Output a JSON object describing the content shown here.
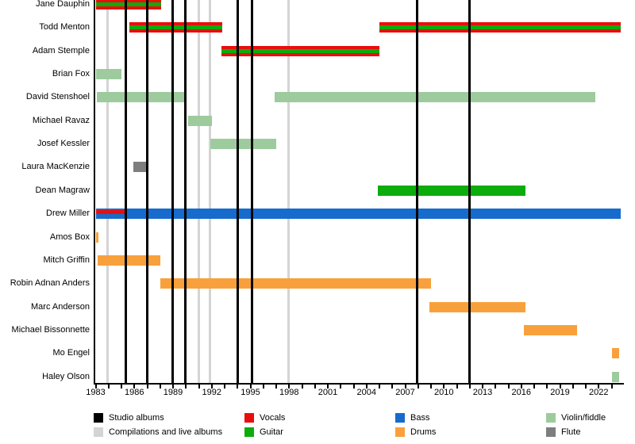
{
  "colors": {
    "vocals": "#e90e0e",
    "guitar": "#0cac0c",
    "bass": "#176bcd",
    "drums": "#f8a13c",
    "violin": "#9dcb9d",
    "flute": "#7e7e7e",
    "studio_line": "#000000",
    "compilation_line": "#d4d4d4"
  },
  "chart_data": {
    "type": "timeline",
    "description": "Band members timeline with instrument roles and album release markers",
    "x_axis": {
      "start_year": 1983,
      "end_year": 2023.75,
      "major_tick_labels": [
        "1983",
        "1986",
        "1989",
        "1992",
        "1995",
        "1998",
        "2001",
        "2004",
        "2007",
        "2010",
        "2013",
        "2016",
        "2019",
        "2022"
      ],
      "major_tick_years": [
        1983,
        1986,
        1989,
        1992,
        1995,
        1998,
        2001,
        2004,
        2007,
        2010,
        2013,
        2016,
        2019,
        2022
      ],
      "minor_tick_every": 1
    },
    "members": [
      {
        "name": "Jane Dauphin",
        "bars": [
          {
            "start": 1983.0,
            "end": 1988.1,
            "roles": [
              "vocals",
              "guitar"
            ]
          }
        ]
      },
      {
        "name": "Todd Menton",
        "bars": [
          {
            "start": 1985.6,
            "end": 1992.8,
            "roles": [
              "vocals",
              "guitar"
            ]
          },
          {
            "start": 2005.0,
            "end": 2023.7,
            "roles": [
              "vocals",
              "guitar"
            ]
          }
        ]
      },
      {
        "name": "Adam Stemple",
        "bars": [
          {
            "start": 1992.75,
            "end": 2005.0,
            "roles": [
              "vocals",
              "guitar"
            ]
          }
        ]
      },
      {
        "name": "Brian Fox",
        "bars": [
          {
            "start": 1983.0,
            "end": 1985.0,
            "roles": [
              "violin"
            ]
          }
        ]
      },
      {
        "name": "David Stenshoel",
        "bars": [
          {
            "start": 1983.1,
            "end": 1990.0,
            "roles": [
              "violin"
            ]
          },
          {
            "start": 1996.9,
            "end": 2021.75,
            "roles": [
              "violin"
            ]
          }
        ]
      },
      {
        "name": "Michael Ravaz",
        "bars": [
          {
            "start": 1990.15,
            "end": 1992.0,
            "roles": [
              "violin"
            ]
          }
        ]
      },
      {
        "name": "Josef Kessler",
        "bars": [
          {
            "start": 1991.9,
            "end": 1997.0,
            "roles": [
              "violin"
            ]
          }
        ]
      },
      {
        "name": "Laura MacKenzie",
        "bars": [
          {
            "start": 1985.95,
            "end": 1987.0,
            "roles": [
              "flute"
            ]
          }
        ]
      },
      {
        "name": "Dean Magraw",
        "bars": [
          {
            "start": 2004.9,
            "end": 2016.3,
            "roles": [
              "guitar"
            ]
          }
        ]
      },
      {
        "name": "Drew Miller",
        "bars": [
          {
            "start": 1983.0,
            "end": 2023.7,
            "roles": [
              "bass"
            ],
            "overlay": {
              "start": 1983.0,
              "end": 1985.25,
              "role": "vocals"
            }
          }
        ]
      },
      {
        "name": "Amos Box",
        "bars": [
          {
            "start": 1983.0,
            "end": 1983.2,
            "roles": [
              "drums"
            ]
          }
        ]
      },
      {
        "name": "Mitch Griffin",
        "bars": [
          {
            "start": 1983.15,
            "end": 1988.0,
            "roles": [
              "drums"
            ]
          }
        ]
      },
      {
        "name": "Robin Adnan Anders",
        "bars": [
          {
            "start": 1988.0,
            "end": 2009.0,
            "roles": [
              "drums"
            ]
          }
        ]
      },
      {
        "name": "Marc Anderson",
        "bars": [
          {
            "start": 2008.9,
            "end": 2016.3,
            "roles": [
              "drums"
            ]
          }
        ]
      },
      {
        "name": "Michael Bissonnette",
        "bars": [
          {
            "start": 2016.2,
            "end": 2020.35,
            "roles": [
              "drums"
            ]
          }
        ]
      },
      {
        "name": "Mo Engel",
        "bars": [
          {
            "start": 2023.05,
            "end": 2023.6,
            "roles": [
              "drums"
            ]
          }
        ]
      },
      {
        "name": "Haley Olson",
        "bars": [
          {
            "start": 2023.05,
            "end": 2023.6,
            "roles": [
              "violin"
            ]
          }
        ]
      }
    ],
    "album_lines": [
      {
        "year": 1983.9,
        "type": "compilation"
      },
      {
        "year": 1985.35,
        "type": "studio"
      },
      {
        "year": 1987.0,
        "type": "studio"
      },
      {
        "year": 1988.95,
        "type": "studio"
      },
      {
        "year": 1989.95,
        "type": "studio"
      },
      {
        "year": 1991.0,
        "type": "compilation"
      },
      {
        "year": 1991.85,
        "type": "compilation"
      },
      {
        "year": 1994.0,
        "type": "studio"
      },
      {
        "year": 1995.1,
        "type": "studio"
      },
      {
        "year": 1997.95,
        "type": "compilation"
      },
      {
        "year": 2007.95,
        "type": "studio"
      },
      {
        "year": 2012.0,
        "type": "studio"
      }
    ]
  },
  "legend": {
    "columns": [
      {
        "items": [
          {
            "label": "Studio albums",
            "color_key": "studio_line"
          },
          {
            "label": "Compilations and live albums",
            "color_key": "compilation_line"
          }
        ]
      },
      {
        "items": [
          {
            "label": "Vocals",
            "color_key": "vocals"
          },
          {
            "label": "Guitar",
            "color_key": "guitar"
          }
        ]
      },
      {
        "items": [
          {
            "label": "Bass",
            "color_key": "bass"
          },
          {
            "label": "Drums",
            "color_key": "drums"
          }
        ]
      },
      {
        "items": [
          {
            "label": "Violin/fiddle",
            "color_key": "violin"
          },
          {
            "label": "Flute",
            "color_key": "flute"
          }
        ]
      }
    ]
  }
}
